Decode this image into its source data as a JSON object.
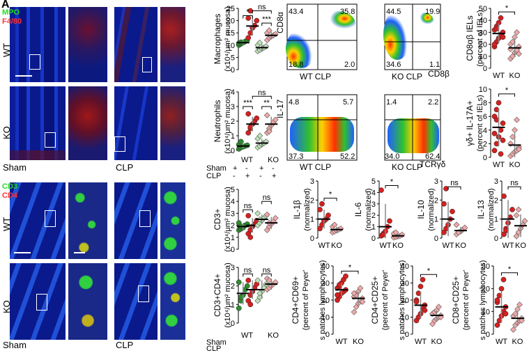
{
  "panel_letter": "A",
  "microscopy_top": {
    "legend": [
      {
        "text": "MPO",
        "color": "#22dd22"
      },
      {
        "text": "F4/80",
        "color": "#ff3030"
      }
    ],
    "rows": [
      "WT",
      "KO"
    ],
    "cols": [
      "Sham",
      "CLP"
    ]
  },
  "microscopy_bottom": {
    "legend": [
      {
        "text": "CD3",
        "color": "#22dd22"
      },
      {
        "text": "CD4",
        "color": "#ff3030"
      }
    ],
    "rows": [
      "WT",
      "KO"
    ],
    "cols": [
      "Sham",
      "CLP"
    ]
  },
  "group_legend": {
    "sham_label": "Sham",
    "clp_label": "CLP",
    "sham_marks": [
      "+",
      "-",
      "+",
      "-"
    ],
    "clp_marks": [
      "-",
      "+",
      "-",
      "+"
    ],
    "genotypes": [
      "WT",
      "KO"
    ]
  },
  "flow": {
    "cd8": {
      "y_label": "CD8α",
      "x_label": "CD8β",
      "wt_label": "WT CLP",
      "ko_label": "KO CLP",
      "wt_q": [
        "43.4",
        "35.8",
        "18.8",
        "2.0"
      ],
      "ko_q": [
        "44.5",
        "19.9",
        "34.6",
        "1.1"
      ]
    },
    "il17": {
      "y_label": "IL-17",
      "x_label": "TCRγδ",
      "wt_label": "WT CLP",
      "ko_label": "KO CLP",
      "wt_q": [
        "4.8",
        "5.7",
        "37.3",
        "52.2"
      ],
      "ko_q": [
        "1.4",
        "2.2",
        "34.0",
        "62.4"
      ]
    }
  },
  "chart_data": [
    {
      "type": "scatter",
      "id": "macrophages",
      "ylabel": "Macrophages",
      "yunit": "(x10⁴/μm² mucosa)",
      "ylim": [
        0,
        25
      ],
      "yticks": [
        0,
        5,
        10,
        15,
        20,
        25
      ],
      "groups": [
        {
          "mean": 11,
          "sd": 1.2,
          "values": [
            10,
            10.5,
            11,
            11.5,
            12,
            10.8,
            11.2
          ]
        },
        {
          "mean": 17.8,
          "sd": 4,
          "values": [
            13,
            15,
            17,
            18,
            20,
            21,
            24
          ]
        },
        {
          "mean": 9,
          "sd": 1.5,
          "values": [
            7.5,
            8,
            8.5,
            9,
            9.5,
            10,
            11
          ]
        },
        {
          "mean": 14,
          "sd": 1.5,
          "values": [
            12,
            13,
            13.5,
            14,
            14.5,
            15,
            16
          ]
        }
      ],
      "sig": [
        {
          "a": 0,
          "b": 1,
          "t": "*",
          "y": 22
        },
        {
          "a": 1,
          "b": 3,
          "t": "ns",
          "y": 24
        },
        {
          "a": 2,
          "b": 3,
          "t": "***",
          "y": 19
        }
      ]
    },
    {
      "type": "scatter",
      "id": "neutrophils",
      "ylabel": "Neutrophils",
      "yunit": "(x10⁴/μm² mucosa)",
      "ylim": [
        0,
        4
      ],
      "yticks": [
        0,
        1,
        2,
        3,
        4
      ],
      "groups": [
        {
          "mean": 0.3,
          "sd": 0.15,
          "values": [
            0.1,
            0.2,
            0.25,
            0.3,
            0.35,
            0.4,
            0.6
          ]
        },
        {
          "mean": 1.8,
          "sd": 0.5,
          "values": [
            1.2,
            1.5,
            1.8,
            2.0,
            2.2,
            2.5,
            1.6
          ]
        },
        {
          "mean": 0.5,
          "sd": 0.3,
          "values": [
            0.2,
            0.3,
            0.4,
            0.5,
            0.6,
            0.8,
            1.0
          ]
        },
        {
          "mean": 1.8,
          "sd": 0.5,
          "values": [
            1.2,
            1.5,
            1.7,
            1.9,
            2.1,
            2.4,
            1.3
          ]
        }
      ],
      "sig": [
        {
          "a": 0,
          "b": 1,
          "t": "***",
          "y": 3.0
        },
        {
          "a": 1,
          "b": 3,
          "t": "ns",
          "y": 3.7
        },
        {
          "a": 2,
          "b": 3,
          "t": "**",
          "y": 3.0
        }
      ]
    },
    {
      "type": "scatter",
      "id": "cd3",
      "ylabel": "CD3+",
      "yunit": "(x10⁴/μm² mucosa)",
      "ylim": [
        0,
        5
      ],
      "yticks": [
        0,
        1,
        2,
        3,
        4,
        5
      ],
      "groups": [
        {
          "mean": 1.9,
          "sd": 0.3,
          "values": [
            1.6,
            1.7,
            1.8,
            2.0,
            2.1,
            2.2,
            1.9
          ]
        },
        {
          "mean": 2.0,
          "sd": 0.6,
          "values": [
            1.3,
            1.6,
            1.9,
            2.1,
            2.4,
            2.8,
            1.0
          ]
        },
        {
          "mean": 2.5,
          "sd": 0.4,
          "values": [
            2.0,
            2.2,
            2.4,
            2.6,
            2.8,
            3.0,
            2.5
          ]
        },
        {
          "mean": 2.2,
          "sd": 0.5,
          "values": [
            1.6,
            1.9,
            2.1,
            2.3,
            2.6,
            2.9,
            2.2
          ]
        }
      ],
      "sig": [
        {
          "a": 0,
          "b": 1,
          "t": "ns",
          "y": 3.3
        },
        {
          "a": 2,
          "b": 3,
          "t": "ns",
          "y": 4.0
        }
      ]
    },
    {
      "type": "scatter",
      "id": "cd3cd4",
      "ylabel": "CD3+CD4+",
      "yunit": "(x10⁴/μm² mucosa)",
      "ylim": [
        0,
        3
      ],
      "yticks": [
        0,
        1,
        2,
        3
      ],
      "groups": [
        {
          "mean": 1.6,
          "sd": 0.6,
          "values": [
            0.8,
            1.2,
            1.5,
            1.8,
            2.0,
            2.2,
            1.4
          ]
        },
        {
          "mean": 1.8,
          "sd": 0.5,
          "values": [
            1.2,
            1.5,
            1.7,
            1.9,
            2.1,
            2.3,
            1.0
          ]
        },
        {
          "mean": 1.8,
          "sd": 0.5,
          "values": [
            1.2,
            1.4,
            1.7,
            1.9,
            2.1,
            2.3,
            1.6
          ]
        },
        {
          "mean": 2.1,
          "sd": 0.3,
          "values": [
            1.8,
            1.9,
            2.0,
            2.1,
            2.2,
            2.4,
            2.3
          ]
        }
      ],
      "sig": [
        {
          "a": 0,
          "b": 1,
          "t": "ns",
          "y": 2.65
        },
        {
          "a": 2,
          "b": 3,
          "t": "ns",
          "y": 2.65
        }
      ]
    },
    {
      "type": "scatter",
      "id": "cd8ab",
      "ylabel": "CD8αβ IELs",
      "yunit": "(percent of IELs)",
      "ylim": [
        0,
        50
      ],
      "yticks": [
        0,
        10,
        20,
        30,
        40,
        50
      ],
      "groups": [
        {
          "mean": 29,
          "sd": 8,
          "values": [
            18,
            22,
            25,
            28,
            30,
            32,
            35,
            38,
            42,
            26,
            20,
            33
          ]
        },
        {
          "mean": 17,
          "sd": 8,
          "values": [
            8,
            10,
            13,
            15,
            18,
            20,
            22,
            26,
            30,
            12,
            16
          ]
        }
      ],
      "sig": [
        {
          "a": 0,
          "b": 1,
          "t": "*",
          "y": 47
        }
      ]
    },
    {
      "type": "scatter",
      "id": "gd_il17",
      "ylabel": "γδ+ IL-17A+",
      "yunit": "(percent of IELs)",
      "ylim": [
        0,
        10
      ],
      "yticks": [
        0,
        2,
        4,
        6,
        8,
        10
      ],
      "groups": [
        {
          "mean": 4.4,
          "sd": 2.8,
          "values": [
            1,
            2,
            3,
            4,
            5,
            6,
            7,
            8,
            0.5,
            2.5,
            3.5,
            5.5
          ]
        },
        {
          "mean": 1.8,
          "sd": 1.8,
          "values": [
            0.2,
            0.5,
            0.8,
            1.0,
            1.5,
            2.0,
            3.0,
            4.0,
            5.5,
            1.2
          ]
        }
      ],
      "sig": [
        {
          "a": 0,
          "b": 1,
          "t": "*",
          "y": 9.3
        }
      ]
    },
    {
      "type": "scatter",
      "id": "il1b",
      "ylabel": "IL-1β",
      "yunit": "(normalized)",
      "ylim": [
        0,
        3
      ],
      "yticks": [
        0,
        1,
        2,
        3
      ],
      "groups": [
        {
          "mean": 1.0,
          "sd": 0.5,
          "values": [
            0.5,
            0.7,
            0.9,
            1.0,
            1.2,
            1.5,
            1.8
          ]
        },
        {
          "mean": 0.45,
          "sd": 0.15,
          "values": [
            0.3,
            0.35,
            0.4,
            0.45,
            0.5,
            0.6,
            0.7
          ]
        }
      ],
      "sig": [
        {
          "a": 0,
          "b": 1,
          "t": "*",
          "y": 2.1
        }
      ]
    },
    {
      "type": "scatter",
      "id": "il6",
      "ylabel": "IL-6",
      "yunit": "(normalized)",
      "ylim": [
        0,
        5
      ],
      "yticks": [
        0,
        1,
        2,
        3,
        4,
        5
      ],
      "groups": [
        {
          "mean": 1.0,
          "sd": 2.0,
          "values": [
            0.2,
            0.4,
            0.6,
            1.0,
            1.5,
            4.2,
            0.3
          ]
        },
        {
          "mean": 0.2,
          "sd": 0.2,
          "values": [
            0.05,
            0.1,
            0.15,
            0.2,
            0.3,
            0.4,
            0.5
          ]
        }
      ],
      "sig": [
        {
          "a": 0,
          "b": 1,
          "t": "*",
          "y": 4.6
        }
      ]
    },
    {
      "type": "scatter",
      "id": "il10",
      "ylabel": "IL-10",
      "yunit": "(normalized)",
      "ylim": [
        0,
        3
      ],
      "yticks": [
        0,
        1,
        2,
        3
      ],
      "groups": [
        {
          "mean": 1.0,
          "sd": 0.9,
          "values": [
            0.3,
            0.5,
            0.7,
            1.0,
            1.4,
            1.8,
            2.6
          ]
        },
        {
          "mean": 0.4,
          "sd": 0.2,
          "values": [
            0.2,
            0.3,
            0.35,
            0.45,
            0.55,
            0.7,
            0.3
          ]
        }
      ],
      "sig": [
        {
          "a": 0,
          "b": 1,
          "t": "ns",
          "y": 2.7
        }
      ]
    },
    {
      "type": "scatter",
      "id": "il13",
      "ylabel": "IL-13",
      "yunit": "(normalized)",
      "ylim": [
        0,
        3
      ],
      "yticks": [
        0,
        1,
        2,
        3
      ],
      "groups": [
        {
          "mean": 1.0,
          "sd": 1.0,
          "values": [
            0.2,
            0.5,
            0.8,
            1.1,
            1.5,
            2.2,
            0.4
          ]
        },
        {
          "mean": 0.65,
          "sd": 0.6,
          "values": [
            0.1,
            0.3,
            0.5,
            0.7,
            0.9,
            1.2,
            1.5
          ]
        }
      ],
      "sig": [
        {
          "a": 0,
          "b": 1,
          "t": "ns",
          "y": 2.7
        }
      ]
    },
    {
      "type": "scatter",
      "id": "cd4cd69",
      "ylabel": "CD4+CD69+",
      "yunit": "(percent of Peyer's patches lymphocytes)",
      "ylim": [
        0,
        40
      ],
      "yticks": [
        0,
        10,
        20,
        30,
        40
      ],
      "groups": [
        {
          "mean": 26,
          "sd": 4,
          "values": [
            20,
            22,
            24,
            25,
            26,
            27,
            28,
            30,
            32,
            34,
            23,
            29
          ]
        },
        {
          "mean": 21,
          "sd": 4,
          "values": [
            13,
            16,
            18,
            20,
            21,
            22,
            23,
            25,
            27,
            19,
            24
          ]
        }
      ],
      "sig": [
        {
          "a": 0,
          "b": 1,
          "t": "*",
          "y": 37
        }
      ]
    },
    {
      "type": "scatter",
      "id": "cd4cd25",
      "ylabel": "CD4+CD25+",
      "yunit": "(percent of Peyer's patches lymphocytes)",
      "ylim": [
        0,
        40
      ],
      "yticks": [
        0,
        10,
        20,
        30,
        40
      ],
      "groups": [
        {
          "mean": 17,
          "sd": 8,
          "values": [
            8,
            10,
            12,
            15,
            17,
            20,
            24,
            28,
            32,
            14,
            19
          ]
        },
        {
          "mean": 11,
          "sd": 3,
          "values": [
            6,
            8,
            9,
            10,
            11,
            12,
            13,
            14,
            16,
            10
          ]
        }
      ],
      "sig": [
        {
          "a": 0,
          "b": 1,
          "t": "*",
          "y": 35
        }
      ]
    },
    {
      "type": "scatter",
      "id": "cd8cd25",
      "ylabel": "CD8+CD25+",
      "yunit": "(percent of Peyer's patches lymphocytes)",
      "ylim": [
        0,
        30
      ],
      "yticks": [
        0,
        10,
        20,
        30
      ],
      "groups": [
        {
          "mean": 12,
          "sd": 7,
          "values": [
            4,
            6,
            8,
            10,
            12,
            14,
            17,
            20,
            24,
            9,
            15
          ]
        },
        {
          "mean": 7,
          "sd": 3,
          "values": [
            2,
            4,
            5,
            6,
            7,
            8,
            9,
            11,
            13,
            6
          ]
        }
      ],
      "sig": [
        {
          "a": 0,
          "b": 1,
          "t": "*",
          "y": 27
        }
      ]
    }
  ]
}
